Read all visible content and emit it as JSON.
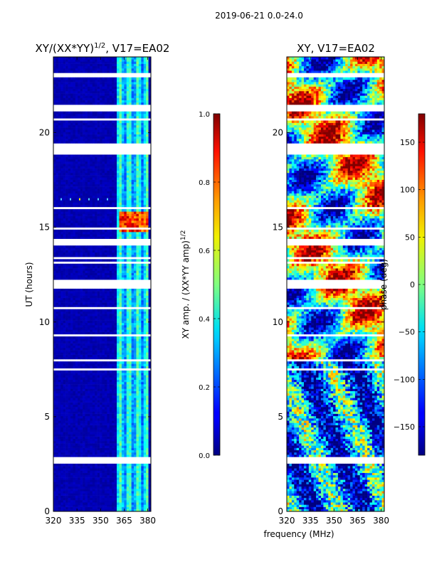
{
  "suptitle": "2019-06-21 0.0-24.0",
  "xlabel": "frequency (MHz)",
  "chart_data": [
    {
      "type": "heatmap",
      "name": "amplitude-ratio",
      "title_main": "XY/(XX*YY)",
      "title_exp": "1/2",
      "title_tail": ", V17=EA02",
      "ylabel": "UT (hours)",
      "xlim": [
        320,
        382
      ],
      "ylim": [
        0,
        24
      ],
      "xticks": [
        "320",
        "335",
        "350",
        "365",
        "380"
      ],
      "xtick_values": [
        320,
        335,
        350,
        365,
        380
      ],
      "yticks": [
        "0",
        "5",
        "10",
        "15",
        "20"
      ],
      "ytick_values": [
        0,
        5,
        10,
        15,
        20
      ],
      "colorbar": {
        "label_main": "XY amp. / (XX*YY amp)",
        "label_exp": "1/2",
        "range": [
          0.0,
          1.0
        ],
        "ticks": [
          "0.0",
          "0.2",
          "0.4",
          "0.6",
          "0.8",
          "1.0"
        ],
        "tick_values": [
          0.0,
          0.2,
          0.4,
          0.6,
          0.8,
          1.0
        ],
        "colormap": "jet"
      }
    },
    {
      "type": "heatmap",
      "name": "xy-phase",
      "title_main": "XY, V17=EA02",
      "xlim": [
        320,
        382
      ],
      "ylim": [
        0,
        24
      ],
      "xticks": [
        "320",
        "335",
        "350",
        "365",
        "380"
      ],
      "xtick_values": [
        320,
        335,
        350,
        365,
        380
      ],
      "yticks": [
        "0",
        "5",
        "10",
        "15",
        "20"
      ],
      "ytick_values": [
        0,
        5,
        10,
        15,
        20
      ],
      "colorbar": {
        "label_main": "phase (deg)",
        "range": [
          -180,
          180
        ],
        "ticks": [
          "−150",
          "−100",
          "−50",
          "0",
          "50",
          "100",
          "150"
        ],
        "tick_values": [
          -150,
          -100,
          -50,
          0,
          50,
          100,
          150
        ],
        "colormap": "jet"
      }
    }
  ],
  "gaps_ut": [
    [
      2.55,
      2.8
    ],
    [
      11.85,
      12.15
    ],
    [
      14.05,
      14.35
    ],
    [
      18.85,
      19.35
    ],
    [
      21.15,
      21.4
    ],
    [
      23.0,
      23.15
    ]
  ],
  "amp_bright_band": {
    "ut": [
      14.7,
      15.8
    ],
    "freq": [
      362,
      380
    ],
    "value": 0.85
  },
  "amp_spike_row_ut": 16.5
}
